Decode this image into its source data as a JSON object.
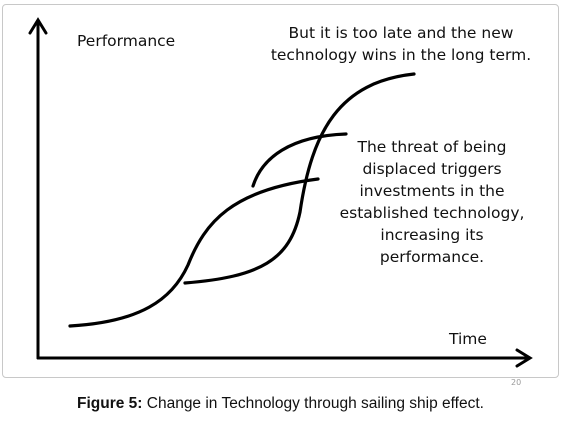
{
  "diagram": {
    "y_axis_label": "Performance",
    "x_axis_label": "Time",
    "note_top": "But it is too late and the new technology wins in the long term.",
    "note_right": "The threat of being displaced triggers investments in the established technology, increasing its performance.",
    "page_number": "20",
    "line_color": "#000000"
  },
  "caption": {
    "prefix": "Figure 5:",
    "text": " Change in Technology through sailing ship effect."
  }
}
